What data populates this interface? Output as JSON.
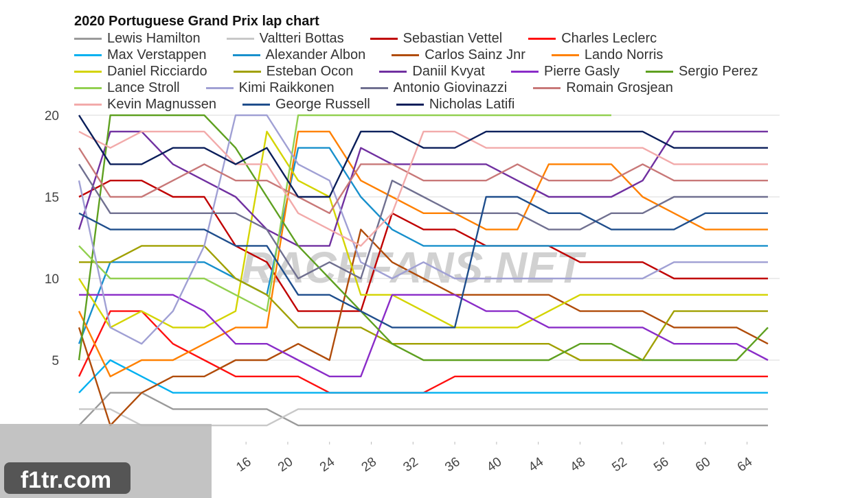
{
  "chart_data": {
    "type": "line",
    "title": "2020 Portuguese Grand Prix lap chart",
    "x": [
      0,
      3,
      6,
      9,
      12,
      15,
      18,
      21,
      24,
      27,
      30,
      33,
      36,
      39,
      42,
      45,
      48,
      51,
      54,
      57,
      60,
      63,
      66
    ],
    "xlim": [
      0,
      66
    ],
    "xticks": [
      16,
      20,
      24,
      28,
      32,
      36,
      40,
      44,
      48,
      52,
      56,
      60,
      64
    ],
    "ylim": [
      0,
      20
    ],
    "yticks": [
      5,
      10,
      15,
      20
    ],
    "grid": true,
    "watermarks": [
      "RACEFANS.NET",
      "f1tr.com"
    ],
    "series": [
      {
        "name": "Lewis Hamilton",
        "color": "#9a9a9a",
        "values": [
          1,
          3,
          3,
          2,
          2,
          2,
          2,
          1,
          1,
          1,
          1,
          1,
          1,
          1,
          1,
          1,
          1,
          1,
          1,
          1,
          1,
          1,
          1
        ]
      },
      {
        "name": "Valtteri Bottas",
        "color": "#c8c8c8",
        "values": [
          2,
          2,
          1,
          1,
          1,
          1,
          1,
          2,
          2,
          2,
          2,
          2,
          2,
          2,
          2,
          2,
          2,
          2,
          2,
          2,
          2,
          2,
          2
        ]
      },
      {
        "name": "Sebastian Vettel",
        "color": "#c00000",
        "values": [
          15,
          16,
          16,
          15,
          15,
          12,
          11,
          8,
          8,
          8,
          14,
          13,
          13,
          12,
          12,
          12,
          11,
          11,
          11,
          10,
          10,
          10,
          10
        ]
      },
      {
        "name": "Charles Leclerc",
        "color": "#ff1010",
        "values": [
          4,
          8,
          8,
          6,
          5,
          4,
          4,
          4,
          3,
          3,
          3,
          3,
          4,
          4,
          4,
          4,
          4,
          4,
          4,
          4,
          4,
          4,
          4
        ]
      },
      {
        "name": "Max Verstappen",
        "color": "#00b0f0",
        "values": [
          3,
          5,
          4,
          3,
          3,
          3,
          3,
          3,
          3,
          3,
          3,
          3,
          3,
          3,
          3,
          3,
          3,
          3,
          3,
          3,
          3,
          3,
          3
        ]
      },
      {
        "name": "Alexander Albon",
        "color": "#1890cc",
        "values": [
          6,
          11,
          11,
          11,
          11,
          10,
          9,
          18,
          18,
          15,
          13,
          12,
          12,
          12,
          12,
          12,
          12,
          12,
          12,
          12,
          12,
          12,
          12
        ]
      },
      {
        "name": "Carlos Sainz Jnr",
        "color": "#b04c0a",
        "values": [
          7,
          1,
          3,
          4,
          4,
          5,
          5,
          6,
          5,
          13,
          11,
          10,
          9,
          9,
          9,
          9,
          8,
          8,
          8,
          7,
          7,
          7,
          6
        ]
      },
      {
        "name": "Lando Norris",
        "color": "#ff8000",
        "values": [
          8,
          4,
          5,
          5,
          6,
          7,
          7,
          19,
          19,
          16,
          15,
          14,
          14,
          13,
          13,
          17,
          17,
          17,
          15,
          14,
          13,
          13,
          13
        ]
      },
      {
        "name": "Daniel Ricciardo",
        "color": "#d4d400",
        "values": [
          10,
          7,
          8,
          7,
          7,
          8,
          19,
          16,
          15,
          9,
          9,
          8,
          7,
          7,
          7,
          8,
          9,
          9,
          9,
          9,
          9,
          9,
          9
        ]
      },
      {
        "name": "Esteban Ocon",
        "color": "#a0a000",
        "values": [
          11,
          11,
          12,
          12,
          12,
          10,
          9,
          7,
          7,
          7,
          6,
          6,
          6,
          6,
          6,
          6,
          5,
          5,
          5,
          8,
          8,
          8,
          8
        ]
      },
      {
        "name": "Daniil Kvyat",
        "color": "#7030a0",
        "values": [
          13,
          19,
          19,
          17,
          16,
          15,
          13,
          12,
          12,
          18,
          17,
          17,
          17,
          17,
          16,
          15,
          15,
          15,
          16,
          19,
          19,
          19,
          19
        ]
      },
      {
        "name": "Pierre Gasly",
        "color": "#8a2cc8",
        "values": [
          9,
          9,
          9,
          9,
          8,
          6,
          6,
          5,
          4,
          4,
          9,
          9,
          9,
          8,
          8,
          7,
          7,
          7,
          7,
          6,
          6,
          6,
          5
        ]
      },
      {
        "name": "Sergio Perez",
        "color": "#5ea020",
        "values": [
          5,
          20,
          20,
          20,
          20,
          18,
          15,
          12,
          10,
          8,
          6,
          5,
          5,
          5,
          5,
          5,
          6,
          6,
          5,
          5,
          5,
          5,
          7
        ]
      },
      {
        "name": "Lance Stroll",
        "color": "#92d050",
        "values": [
          12,
          10,
          10,
          10,
          10,
          9,
          8,
          20,
          20,
          20,
          20,
          20,
          20,
          20,
          20,
          20,
          20,
          20,
          null,
          null,
          null,
          null,
          null
        ]
      },
      {
        "name": "Kimi Raikkonen",
        "color": "#a0a0d4",
        "values": [
          16,
          7,
          6,
          8,
          12,
          20,
          20,
          17,
          16,
          11,
          10,
          11,
          10,
          10,
          10,
          10,
          10,
          10,
          10,
          11,
          11,
          11,
          11
        ]
      },
      {
        "name": "Antonio Giovinazzi",
        "color": "#707090",
        "values": [
          17,
          14,
          14,
          14,
          14,
          14,
          13,
          10,
          11,
          10,
          16,
          15,
          14,
          14,
          14,
          13,
          13,
          14,
          14,
          15,
          15,
          15,
          15
        ]
      },
      {
        "name": "Romain Grosjean",
        "color": "#c87878",
        "values": [
          18,
          15,
          15,
          16,
          17,
          16,
          16,
          15,
          14,
          17,
          17,
          16,
          16,
          16,
          17,
          16,
          16,
          16,
          17,
          16,
          16,
          16,
          16
        ]
      },
      {
        "name": "Kevin Magnussen",
        "color": "#f2aaaa",
        "values": [
          19,
          18,
          19,
          19,
          19,
          17,
          17,
          14,
          13,
          12,
          14,
          19,
          19,
          18,
          18,
          18,
          18,
          18,
          18,
          17,
          17,
          17,
          17
        ]
      },
      {
        "name": "George Russell",
        "color": "#1f4e8c",
        "values": [
          14,
          13,
          13,
          13,
          13,
          12,
          12,
          9,
          9,
          8,
          7,
          7,
          7,
          15,
          15,
          14,
          14,
          13,
          13,
          13,
          14,
          14,
          14
        ]
      },
      {
        "name": "Nicholas Latifi",
        "color": "#0a1e5a",
        "values": [
          20,
          17,
          17,
          18,
          18,
          17,
          18,
          15,
          15,
          19,
          19,
          18,
          18,
          19,
          19,
          19,
          19,
          19,
          19,
          18,
          18,
          18,
          18
        ]
      }
    ]
  }
}
